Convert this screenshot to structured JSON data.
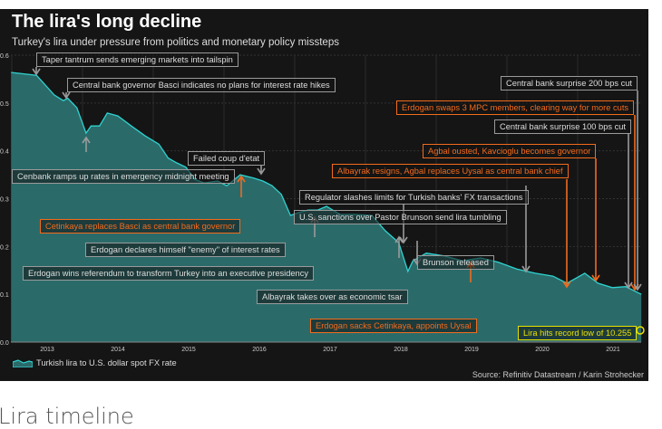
{
  "chart_data": {
    "type": "area",
    "title": "The lira's long decline",
    "subtitle": "Turkey's lira under pressure from politics and monetary policy missteps",
    "ylim": [
      0,
      0.6
    ],
    "yticks": [
      "0.0",
      "0.1",
      "0.2",
      "0.3",
      "0.4",
      "0.5",
      "0.6"
    ],
    "xlim": [
      2012.49,
      2021.4
    ],
    "xticks": [
      "2013",
      "2014",
      "2015",
      "2016",
      "2017",
      "2018",
      "2019",
      "2020",
      "2021"
    ],
    "grid": true,
    "legend_placement": "bottom-left",
    "series": [
      {
        "name": "Turkish lira to U.S. dollar spot FX rate",
        "color": "#2ed3d0",
        "fill": "#2a6b6a",
        "points": [
          [
            2012.49,
            0.564
          ],
          [
            2012.85,
            0.558
          ],
          [
            2013.1,
            0.517
          ],
          [
            2013.23,
            0.505
          ],
          [
            2013.29,
            0.51
          ],
          [
            2013.42,
            0.49
          ],
          [
            2013.55,
            0.437
          ],
          [
            2013.62,
            0.452
          ],
          [
            2013.74,
            0.452
          ],
          [
            2013.85,
            0.479
          ],
          [
            2014.0,
            0.473
          ],
          [
            2014.19,
            0.452
          ],
          [
            2014.38,
            0.432
          ],
          [
            2014.58,
            0.414
          ],
          [
            2014.71,
            0.385
          ],
          [
            2014.83,
            0.375
          ],
          [
            2014.96,
            0.366
          ],
          [
            2015.09,
            0.34
          ],
          [
            2015.22,
            0.333
          ],
          [
            2015.41,
            0.337
          ],
          [
            2015.54,
            0.327
          ],
          [
            2015.73,
            0.35
          ],
          [
            2015.92,
            0.343
          ],
          [
            2016.05,
            0.337
          ],
          [
            2016.18,
            0.327
          ],
          [
            2016.31,
            0.309
          ],
          [
            2016.44,
            0.265
          ],
          [
            2016.56,
            0.271
          ],
          [
            2016.69,
            0.276
          ],
          [
            2016.82,
            0.276
          ],
          [
            2016.95,
            0.284
          ],
          [
            2017.14,
            0.267
          ],
          [
            2017.33,
            0.267
          ],
          [
            2017.59,
            0.265
          ],
          [
            2017.78,
            0.233
          ],
          [
            2017.97,
            0.208
          ],
          [
            2018.1,
            0.148
          ],
          [
            2018.17,
            0.17
          ],
          [
            2018.36,
            0.186
          ],
          [
            2018.62,
            0.18
          ],
          [
            2018.87,
            0.17
          ],
          [
            2019.13,
            0.176
          ],
          [
            2019.38,
            0.167
          ],
          [
            2019.64,
            0.153
          ],
          [
            2019.9,
            0.144
          ],
          [
            2020.15,
            0.138
          ],
          [
            2020.35,
            0.123
          ],
          [
            2020.6,
            0.144
          ],
          [
            2020.79,
            0.123
          ],
          [
            2020.99,
            0.114
          ],
          [
            2021.18,
            0.116
          ],
          [
            2021.4,
            0.1
          ]
        ]
      }
    ],
    "annotations": [
      {
        "text": "Taper tantrum sends emerging markets into tailspin",
        "color": "gray"
      },
      {
        "text": "Central bank governor Basci indicates no plans for interest rate hikes",
        "color": "gray"
      },
      {
        "text": "Failed coup d'etat",
        "color": "gray"
      },
      {
        "text": "Cenbank ramps up rates in emergency midnight meeting",
        "color": "gray"
      },
      {
        "text": "Cetinkaya replaces Basci as central bank governor",
        "color": "orange"
      },
      {
        "text": "Erdogan declares himself \"enemy\" of interest rates",
        "color": "gray"
      },
      {
        "text": "Erdogan wins referendum to transform Turkey into an executive presidency",
        "color": "gray"
      },
      {
        "text": "Albayrak takes over as economic tsar",
        "color": "gray"
      },
      {
        "text": "Erdogan sacks Cetinkaya, appoints Uysal",
        "color": "orange"
      },
      {
        "text": "Regulator slashes limits for Turkish banks' FX transactions",
        "color": "gray"
      },
      {
        "text": "U.S. sanctions over Pastor Brunson send lira tumbling",
        "color": "gray"
      },
      {
        "text": "Brunson released",
        "color": "gray"
      },
      {
        "text": "Central bank surprise 200 bps cut",
        "color": "gray"
      },
      {
        "text": "Erdogan swaps 3 MPC members, clearing way for more cuts",
        "color": "orange"
      },
      {
        "text": "Central bank surprise 100 bps cut",
        "color": "gray"
      },
      {
        "text": "Agbal ousted, Kavcioglu becomes governor",
        "color": "orange"
      },
      {
        "text": "Albayrak resigns, Agbal replaces Uysal as central bank chief",
        "color": "orange"
      },
      {
        "text": "Lira hits record low of 10.255",
        "color": "yellow"
      }
    ],
    "source": "Source: Refinitiv Datastream / Karin Strohecker"
  },
  "colors": {
    "gray": "#9a9a9a",
    "orange": "#f26b1d",
    "yellow": "#e8e000"
  },
  "below_heading": "Lira timeline"
}
